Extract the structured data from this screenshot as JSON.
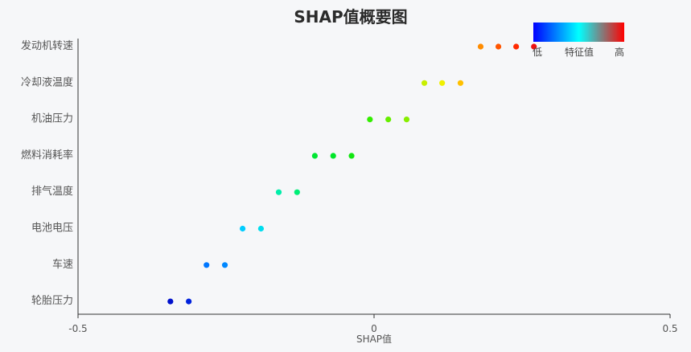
{
  "chart_data": {
    "type": "scatter",
    "title": "SHAP值概要图",
    "xlabel": "SHAP值",
    "ylabel": "",
    "xlim": [
      -0.5,
      0.5
    ],
    "xticks": [
      "-0.5",
      "0",
      "0.5"
    ],
    "categories": [
      "发动机转速",
      "冷却液温度",
      "机油压力",
      "燃料消耗率",
      "排气温度",
      "电池电压",
      "车速",
      "轮胎压力"
    ],
    "points": [
      {
        "feature": "发动机转速",
        "x": 0.18,
        "color": "#ff8c00"
      },
      {
        "feature": "发动机转速",
        "x": 0.21,
        "color": "#ff5500"
      },
      {
        "feature": "发动机转速",
        "x": 0.24,
        "color": "#ff2a00"
      },
      {
        "feature": "发动机转速",
        "x": 0.27,
        "color": "#ee1111"
      },
      {
        "feature": "冷却液温度",
        "x": 0.085,
        "color": "#c8ef00"
      },
      {
        "feature": "冷却液温度",
        "x": 0.115,
        "color": "#f0f000"
      },
      {
        "feature": "冷却液温度",
        "x": 0.146,
        "color": "#ffc000"
      },
      {
        "feature": "机油压力",
        "x": -0.007,
        "color": "#33ee00"
      },
      {
        "feature": "机油压力",
        "x": 0.024,
        "color": "#66ee00"
      },
      {
        "feature": "机油压力",
        "x": 0.055,
        "color": "#88ee00"
      },
      {
        "feature": "燃料消耗率",
        "x": -0.1,
        "color": "#00e633"
      },
      {
        "feature": "燃料消耗率",
        "x": -0.069,
        "color": "#00e629"
      },
      {
        "feature": "燃料消耗率",
        "x": -0.038,
        "color": "#11e611"
      },
      {
        "feature": "排气温度",
        "x": -0.161,
        "color": "#00eeaa"
      },
      {
        "feature": "排气温度",
        "x": -0.13,
        "color": "#00ee77"
      },
      {
        "feature": "电池电压",
        "x": -0.222,
        "color": "#00ccff"
      },
      {
        "feature": "电池电压",
        "x": -0.191,
        "color": "#00ddee"
      },
      {
        "feature": "车速",
        "x": -0.283,
        "color": "#0077ff"
      },
      {
        "feature": "车速",
        "x": -0.252,
        "color": "#0088ff"
      },
      {
        "feature": "轮胎压力",
        "x": -0.344,
        "color": "#0011cc"
      },
      {
        "feature": "轮胎压力",
        "x": -0.313,
        "color": "#0022dd"
      }
    ],
    "legend": {
      "title": "特征值",
      "low": "低",
      "high": "高",
      "colors": [
        "#0000ff",
        "#00ffff",
        "#ff0000"
      ],
      "placement": "top-right"
    },
    "grid": false
  }
}
